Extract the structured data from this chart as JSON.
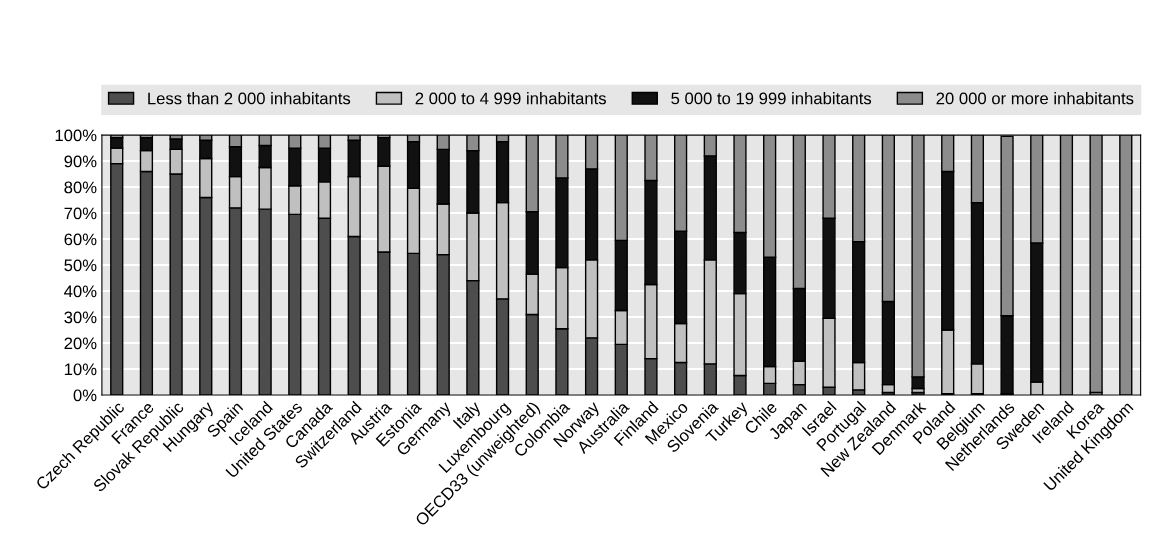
{
  "chart_data": {
    "type": "bar",
    "stacked": true,
    "categories": [
      "Czech Republic",
      "France",
      "Slovak Republic",
      "Hungary",
      "Spain",
      "Iceland",
      "United States",
      "Canada",
      "Switzerland",
      "Austria",
      "Estonia",
      "Germany",
      "Italy",
      "Luxembourg",
      "OECD33 (unweighted)",
      "Colombia",
      "Norway",
      "Australia",
      "Finland",
      "Mexico",
      "Slovenia",
      "Turkey",
      "Chile",
      "Japan",
      "Israel",
      "Portugal",
      "New Zealand",
      "Denmark",
      "Poland",
      "Belgium",
      "Netherlands",
      "Sweden",
      "Ireland",
      "Korea",
      "United Kingdom"
    ],
    "series": [
      {
        "name": "Less than 2 000 inhabitants",
        "color": "#4d4d4d",
        "values": [
          89,
          86,
          85,
          76,
          72,
          71.5,
          69.5,
          68,
          61,
          55,
          54.5,
          54,
          44,
          37,
          31,
          25.5,
          22,
          19.5,
          14,
          12.5,
          12,
          7.5,
          4.5,
          4,
          3,
          2,
          1,
          1,
          0.5,
          0.5,
          0.5,
          0,
          0,
          0,
          0
        ]
      },
      {
        "name": "2 000 to 4 999 inhabitants",
        "color": "#c0c0c0",
        "values": [
          6,
          8,
          9.5,
          15,
          12,
          16,
          11,
          14,
          23,
          33,
          25,
          19.5,
          26,
          37,
          15.5,
          23.5,
          30,
          13,
          28.5,
          15,
          40,
          31.5,
          6.5,
          9,
          26.5,
          10.5,
          3,
          1.5,
          24.5,
          11.5,
          null,
          5,
          0,
          1,
          0
        ]
      },
      {
        "name": "5 000 to 19 999 inhabitants",
        "color": "#111111",
        "values": [
          4,
          5,
          4,
          7,
          11.5,
          8.5,
          14.5,
          13,
          14,
          11,
          18,
          21,
          24,
          23.5,
          24,
          34.5,
          35,
          27,
          40,
          35.5,
          40,
          23.5,
          42,
          28,
          38.5,
          46.5,
          32,
          4.5,
          61,
          62,
          30,
          53.5,
          0,
          0,
          0
        ]
      },
      {
        "name": "20 000 or more inhabitants",
        "color": "#8c8c8c",
        "values": [
          1,
          1,
          1.5,
          2,
          4.5,
          4,
          5,
          5,
          2,
          1,
          2.5,
          5.5,
          6,
          2.5,
          29.5,
          16.5,
          13,
          40.5,
          17.5,
          37,
          8,
          37.5,
          47,
          59,
          32,
          41,
          64,
          93,
          14,
          26,
          69,
          41.5,
          100,
          99,
          100
        ]
      }
    ],
    "ylim": [
      0,
      100
    ],
    "yticks": [
      {
        "value": 0,
        "label": "0%"
      },
      {
        "value": 10,
        "label": "10%"
      },
      {
        "value": 20,
        "label": "20%"
      },
      {
        "value": 30,
        "label": "30%"
      },
      {
        "value": 40,
        "label": "40%"
      },
      {
        "value": 50,
        "label": "50%"
      },
      {
        "value": 60,
        "label": "60%"
      },
      {
        "value": 70,
        "label": "70%"
      },
      {
        "value": 80,
        "label": "80%"
      },
      {
        "value": 90,
        "label": "90%"
      },
      {
        "value": 100,
        "label": "100%"
      }
    ],
    "grid": true,
    "legend": "top"
  }
}
